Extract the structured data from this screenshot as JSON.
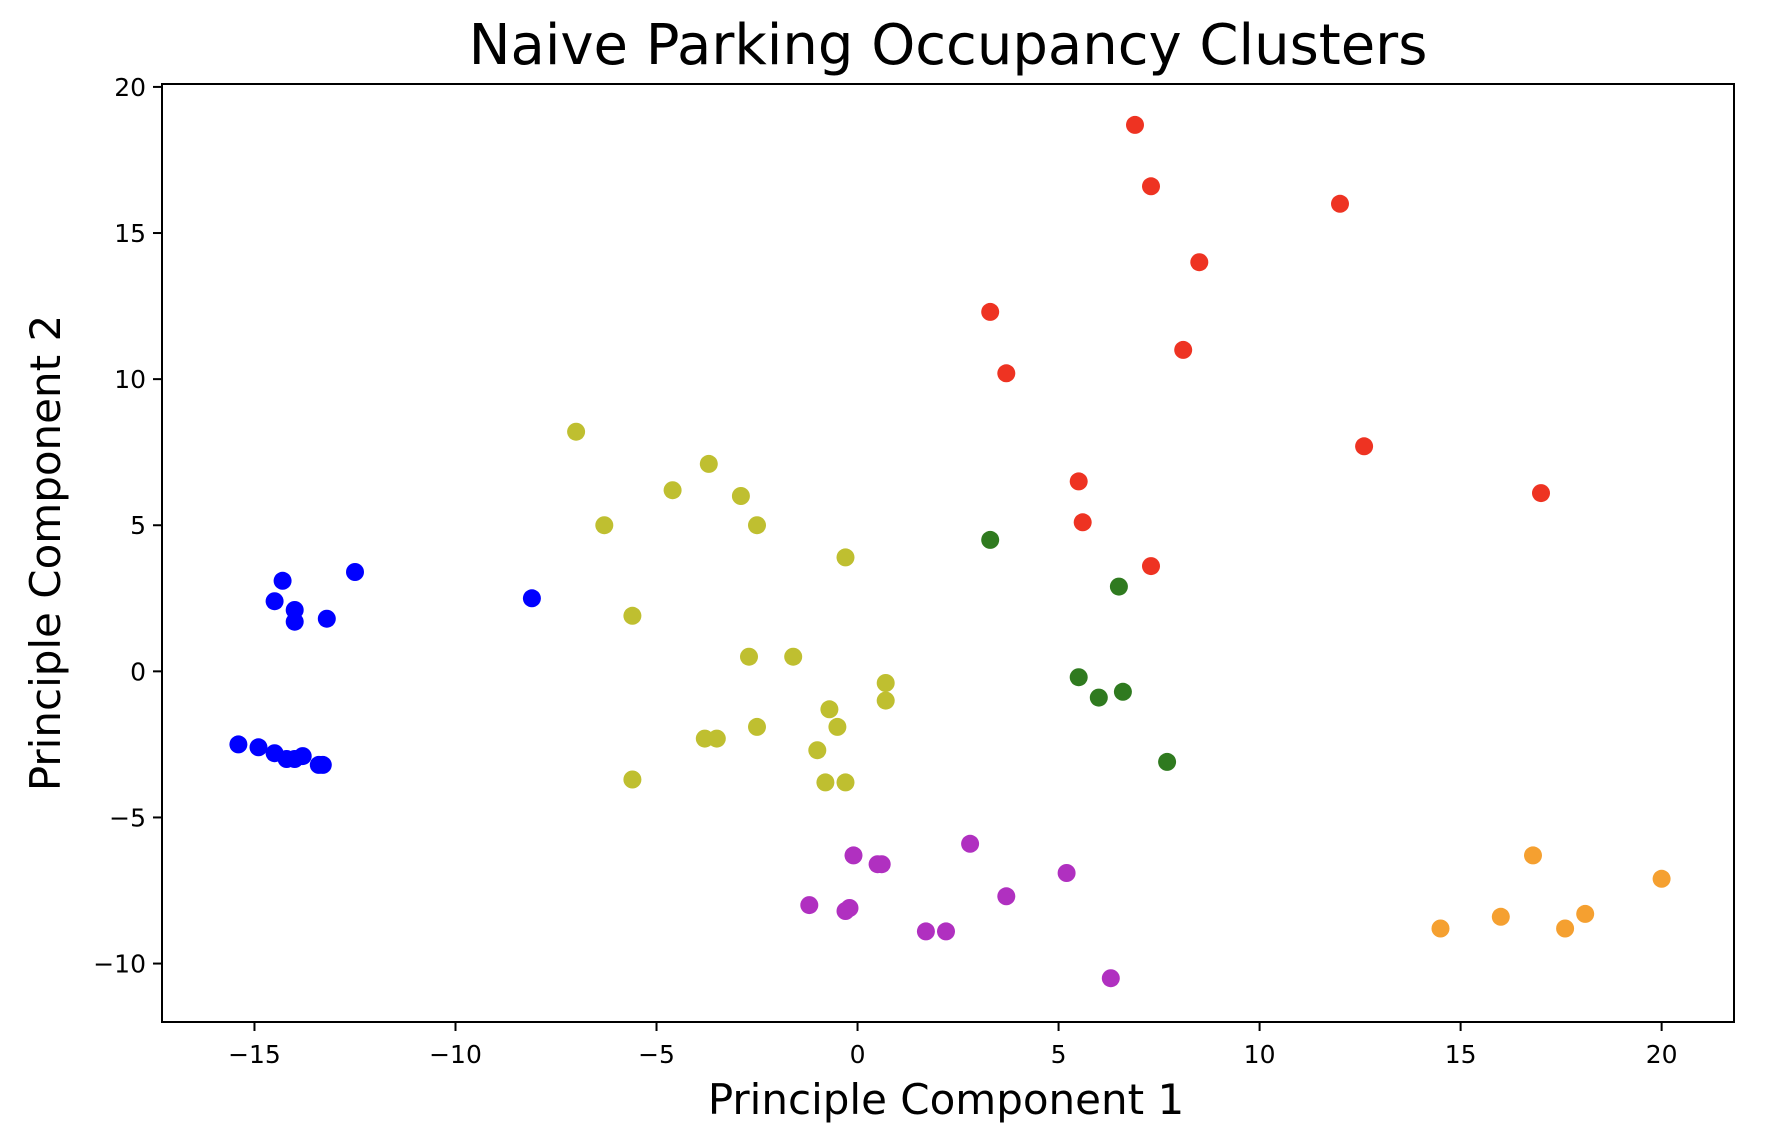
{
  "chart_data": {
    "type": "scatter",
    "title": "Naive Parking Occupancy Clusters",
    "xlabel": "Principle Component 1",
    "ylabel": "Principle Component 2",
    "xlim": [
      -17.3,
      21.8
    ],
    "ylim": [
      -12.0,
      20.1
    ],
    "xticks": [
      -15,
      -10,
      -5,
      0,
      5,
      10,
      15,
      20
    ],
    "yticks": [
      -10,
      -5,
      0,
      5,
      10,
      15,
      20
    ],
    "grid": false,
    "legend": "none",
    "series": [
      {
        "color": "#0000ff",
        "points": [
          [
            -12.5,
            3.4
          ],
          [
            -8.1,
            2.5
          ],
          [
            -14.3,
            3.1
          ],
          [
            -14.5,
            2.4
          ],
          [
            -14.0,
            2.1
          ],
          [
            -14.0,
            1.7
          ],
          [
            -13.2,
            1.8
          ],
          [
            -15.4,
            -2.5
          ],
          [
            -14.9,
            -2.6
          ],
          [
            -14.5,
            -2.8
          ],
          [
            -14.2,
            -3.0
          ],
          [
            -14.0,
            -3.0
          ],
          [
            -13.8,
            -2.9
          ],
          [
            -13.4,
            -3.2
          ],
          [
            -13.3,
            -3.2
          ]
        ]
      },
      {
        "color": "#bfbf30",
        "points": [
          [
            -7.0,
            8.2
          ],
          [
            -4.6,
            6.2
          ],
          [
            -3.7,
            7.1
          ],
          [
            -2.9,
            6.0
          ],
          [
            -6.3,
            5.0
          ],
          [
            -2.5,
            5.0
          ],
          [
            -0.3,
            3.9
          ],
          [
            -5.6,
            1.9
          ],
          [
            -2.7,
            0.5
          ],
          [
            -1.6,
            0.5
          ],
          [
            0.7,
            -0.4
          ],
          [
            0.7,
            -1.0
          ],
          [
            -0.7,
            -1.3
          ],
          [
            -0.5,
            -1.9
          ],
          [
            -2.5,
            -1.9
          ],
          [
            -3.8,
            -2.3
          ],
          [
            -3.5,
            -2.3
          ],
          [
            -1.0,
            -2.7
          ],
          [
            -0.8,
            -3.8
          ],
          [
            -0.3,
            -3.8
          ],
          [
            -5.6,
            -3.7
          ]
        ]
      },
      {
        "color": "#ee3322",
        "points": [
          [
            6.9,
            18.7
          ],
          [
            7.3,
            16.6
          ],
          [
            12.0,
            16.0
          ],
          [
            8.5,
            14.0
          ],
          [
            3.3,
            12.3
          ],
          [
            3.7,
            10.2
          ],
          [
            8.1,
            11.0
          ],
          [
            12.6,
            7.7
          ],
          [
            17.0,
            6.1
          ],
          [
            5.5,
            6.5
          ],
          [
            5.6,
            5.1
          ],
          [
            7.3,
            3.6
          ]
        ]
      },
      {
        "color": "#2f7a1f",
        "points": [
          [
            3.3,
            4.5
          ],
          [
            6.5,
            2.9
          ],
          [
            5.5,
            -0.2
          ],
          [
            6.0,
            -0.9
          ],
          [
            6.6,
            -0.7
          ],
          [
            7.7,
            -3.1
          ]
        ]
      },
      {
        "color": "#b030c0",
        "points": [
          [
            -0.1,
            -6.3
          ],
          [
            0.5,
            -6.6
          ],
          [
            0.6,
            -6.6
          ],
          [
            2.8,
            -5.9
          ],
          [
            5.2,
            -6.9
          ],
          [
            -1.2,
            -8.0
          ],
          [
            -0.3,
            -8.2
          ],
          [
            -0.2,
            -8.1
          ],
          [
            3.7,
            -7.7
          ],
          [
            1.7,
            -8.9
          ],
          [
            2.2,
            -8.9
          ],
          [
            6.3,
            -10.5
          ]
        ]
      },
      {
        "color": "#f5a030",
        "points": [
          [
            16.8,
            -6.3
          ],
          [
            20.0,
            -7.1
          ],
          [
            14.5,
            -8.8
          ],
          [
            16.0,
            -8.4
          ],
          [
            17.6,
            -8.8
          ],
          [
            18.1,
            -8.3
          ]
        ]
      }
    ]
  }
}
